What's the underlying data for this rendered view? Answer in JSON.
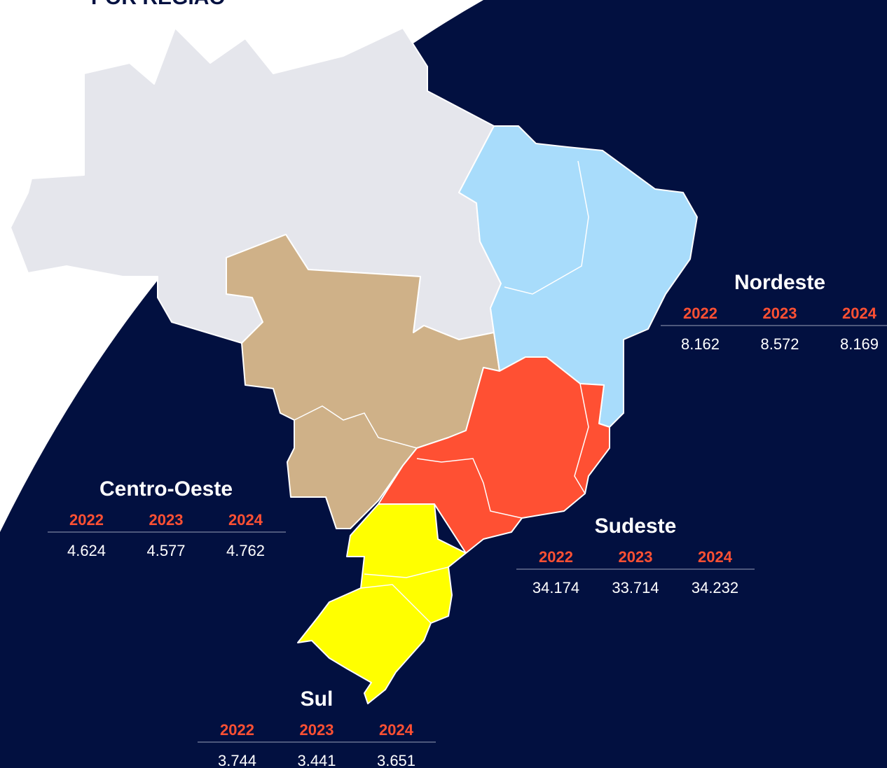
{
  "title": "POR REGIÃO",
  "regions": [
    {
      "name": "Nordeste",
      "years": [
        "2022",
        "2023",
        "2024"
      ],
      "values": [
        "8.162",
        "8.572",
        "8.169"
      ]
    },
    {
      "name": "Centro-Oeste",
      "years": [
        "2022",
        "2023",
        "2024"
      ],
      "values": [
        "4.624",
        "4.577",
        "4.762"
      ]
    },
    {
      "name": "Sudeste",
      "years": [
        "2022",
        "2023",
        "2024"
      ],
      "values": [
        "34.174",
        "33.714",
        "34.232"
      ]
    },
    {
      "name": "Sul",
      "years": [
        "2022",
        "2023",
        "2024"
      ],
      "values": [
        "3.744",
        "3.441",
        "3.651"
      ]
    }
  ]
}
